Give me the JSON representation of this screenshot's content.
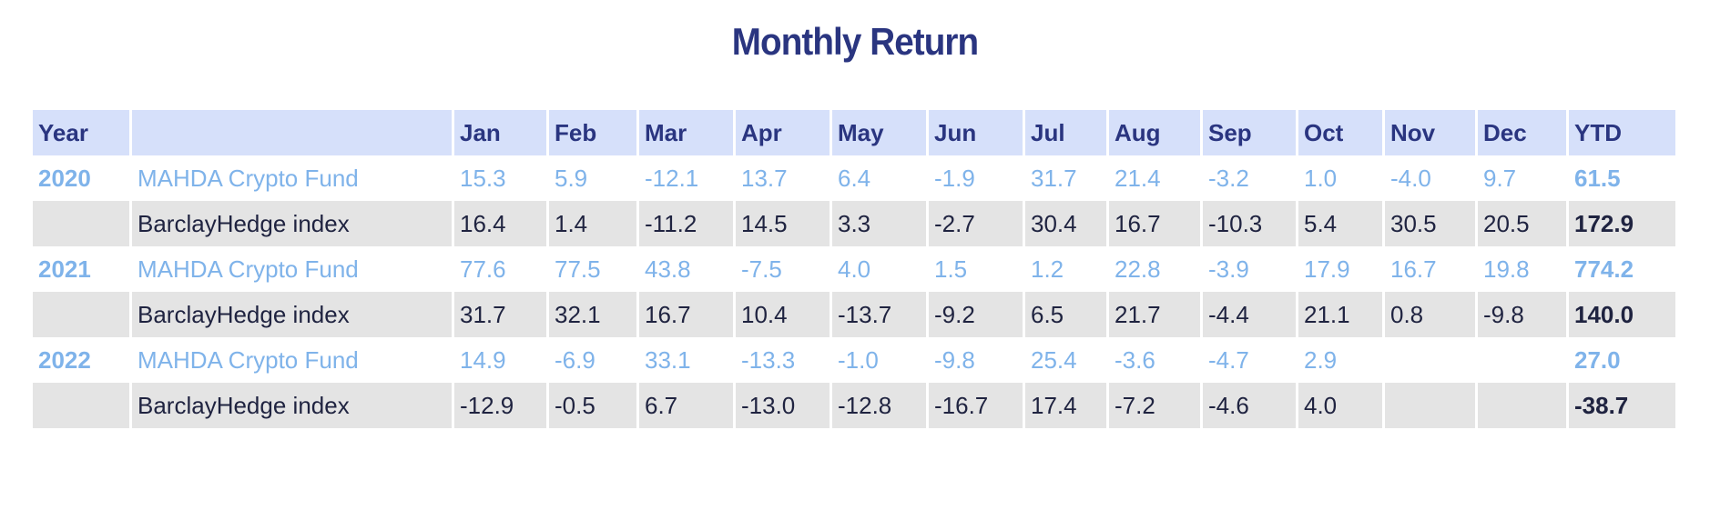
{
  "title": "Monthly Return",
  "colors": {
    "title": "#2a3580",
    "header_bg": "#d6e0fa",
    "fund_text": "#7fb3ea",
    "bench_text": "#1f2340",
    "bench_row_bg": "#e4e4e4"
  },
  "chart_data": {
    "type": "table",
    "title": "Monthly Return",
    "columns": [
      "Year",
      "",
      "Jan",
      "Feb",
      "Mar",
      "Apr",
      "May",
      "Jun",
      "Jul",
      "Aug",
      "Sep",
      "Oct",
      "Nov",
      "Dec",
      "YTD"
    ],
    "rows": [
      {
        "year": "2020",
        "series": "MAHDA Crypto Fund",
        "values": [
          "15.3",
          "5.9",
          "-12.1",
          "13.7",
          "6.4",
          "-1.9",
          "31.7",
          "21.4",
          "-3.2",
          "1.0",
          "-4.0",
          "9.7"
        ],
        "ytd": "61.5"
      },
      {
        "year": "",
        "series": "BarclayHedge index",
        "values": [
          "16.4",
          "1.4",
          "-11.2",
          "14.5",
          "3.3",
          "-2.7",
          "30.4",
          "16.7",
          "-10.3",
          "5.4",
          "30.5",
          "20.5"
        ],
        "ytd": "172.9"
      },
      {
        "year": "2021",
        "series": "MAHDA Crypto Fund",
        "values": [
          "77.6",
          "77.5",
          "43.8",
          "-7.5",
          "4.0",
          "1.5",
          "1.2",
          "22.8",
          "-3.9",
          "17.9",
          "16.7",
          "19.8"
        ],
        "ytd": "774.2"
      },
      {
        "year": "",
        "series": "BarclayHedge index",
        "values": [
          "31.7",
          "32.1",
          "16.7",
          "10.4",
          "-13.7",
          "-9.2",
          "6.5",
          "21.7",
          "-4.4",
          "21.1",
          "0.8",
          "-9.8"
        ],
        "ytd": "140.0"
      },
      {
        "year": "2022",
        "series": "MAHDA Crypto Fund",
        "values": [
          "14.9",
          "-6.9",
          "33.1",
          "-13.3",
          "-1.0",
          "-9.8",
          "25.4",
          "-3.6",
          "-4.7",
          "2.9",
          "",
          ""
        ],
        "ytd": "27.0"
      },
      {
        "year": "",
        "series": "BarclayHedge index",
        "values": [
          "-12.9",
          "-0.5",
          "6.7",
          "-13.0",
          "-12.8",
          "-16.7",
          "17.4",
          "-7.2",
          "-4.6",
          "4.0",
          "",
          ""
        ],
        "ytd": "-38.7"
      }
    ]
  }
}
